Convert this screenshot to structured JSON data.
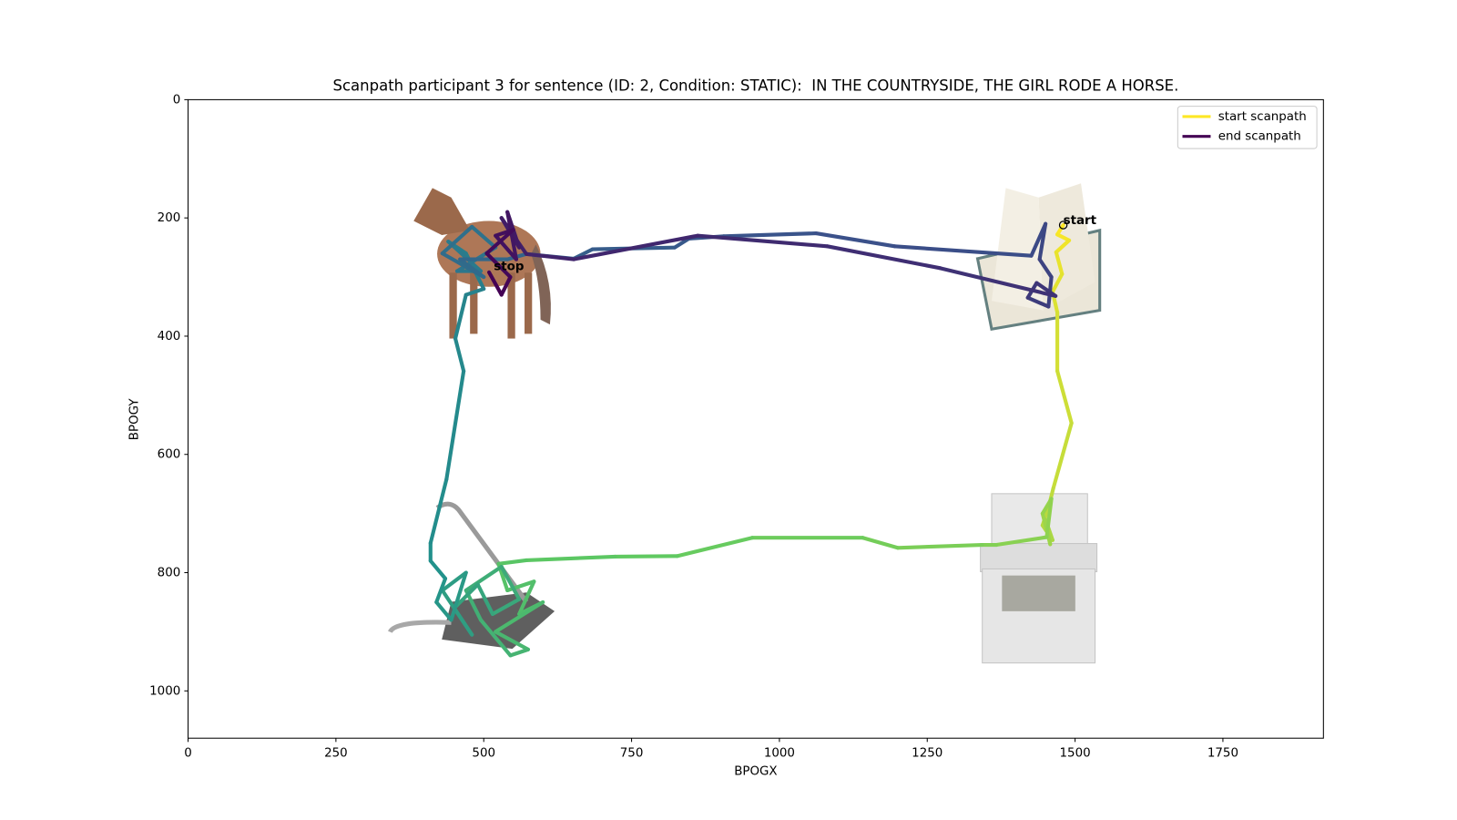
{
  "chart_data": {
    "type": "line",
    "title": "Scanpath participant 3 for sentence (ID: 2, Condition: STATIC):  IN THE COUNTRYSIDE, THE GIRL RODE A HORSE.",
    "x_label": "BPOGX",
    "y_label": "BPOGY",
    "xlim": [
      0,
      1920
    ],
    "ylim": [
      1080,
      0
    ],
    "xticks": [
      0,
      250,
      500,
      750,
      1000,
      1250,
      1500,
      1750
    ],
    "yticks": [
      0,
      200,
      400,
      600,
      800,
      1000
    ],
    "colormap": [
      "#fde725",
      "#5ec962",
      "#21918c",
      "#3b528b",
      "#440154"
    ],
    "legend_position": "upper right",
    "legend": [
      {
        "name": "start scanpath",
        "color": "#fde725"
      },
      {
        "name": "end scanpath",
        "color": "#440154"
      }
    ],
    "annotations": [
      "start",
      "stop"
    ],
    "series": [
      {
        "name": "scanpath",
        "x": [
          1480,
          1470,
          1490,
          1468,
          1478,
          1462,
          1470,
          1470,
          1494,
          1463,
          1455,
          1445,
          1462,
          1450,
          1458,
          1445,
          1460,
          1452,
          1367,
          1343,
          1200,
          1141,
          954,
          827,
          722,
          572,
          525,
          540,
          585,
          560,
          600,
          520,
          575,
          545,
          495,
          470,
          530,
          560,
          515,
          490,
          450,
          480,
          430,
          470,
          445,
          420,
          435,
          410,
          410,
          437,
          466,
          452,
          470,
          500,
          470,
          440,
          495,
          455,
          520,
          480,
          430,
          500,
          460,
          540,
          572,
          652,
          684,
          823,
          847,
          906,
          1062,
          1195,
          1426,
          1450,
          1440,
          1460,
          1455,
          1420,
          1435,
          1467,
          1272,
          1081,
          862,
          652,
          572,
          530,
          560,
          540,
          555,
          520,
          550,
          505,
          545,
          530,
          509
        ],
        "values": [
          212,
          228,
          238,
          258,
          295,
          325,
          360,
          459,
          547,
          658,
          690,
          720,
          745,
          710,
          752,
          700,
          675,
          740,
          753,
          753,
          758,
          741,
          741,
          772,
          773,
          779,
          785,
          830,
          815,
          870,
          850,
          900,
          930,
          940,
          880,
          830,
          790,
          845,
          870,
          820,
          860,
          905,
          830,
          800,
          880,
          850,
          810,
          780,
          750,
          642,
          459,
          404,
          330,
          320,
          260,
          240,
          290,
          290,
          250,
          215,
          260,
          300,
          270,
          270,
          261,
          269,
          253,
          250,
          235,
          231,
          226,
          248,
          264,
          210,
          270,
          300,
          350,
          335,
          310,
          332,
          285,
          248,
          230,
          270,
          261,
          200,
          250,
          190,
          270,
          230,
          220,
          260,
          300,
          330,
          292
        ]
      }
    ]
  }
}
